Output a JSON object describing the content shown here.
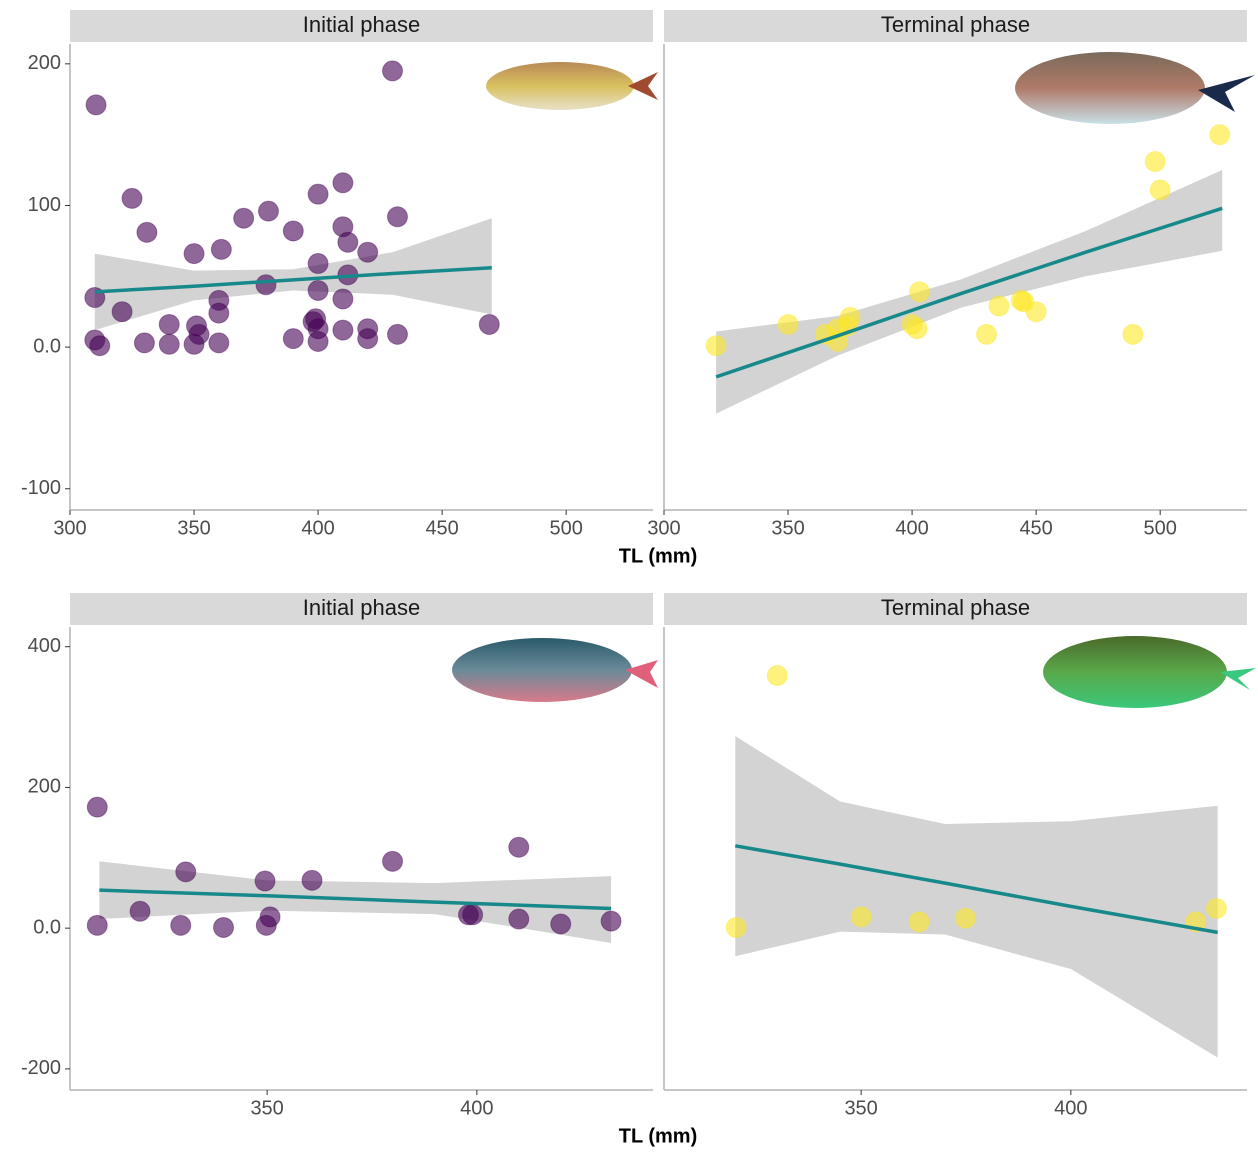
{
  "chart_data": [
    {
      "type": "scatter",
      "title": "Initial phase",
      "xlabel": "TL (mm)",
      "color": "#440154",
      "x": [
        310.5,
        310,
        310,
        312,
        321,
        325,
        330,
        331,
        340,
        340,
        350,
        350,
        351,
        352,
        360,
        360,
        360,
        361,
        370,
        379,
        380,
        390,
        390,
        398,
        399,
        400,
        400,
        400,
        400,
        400,
        410,
        410,
        410,
        410,
        412,
        412,
        420,
        420,
        420,
        430,
        432,
        432,
        469
      ],
      "y": [
        171,
        35,
        5,
        1,
        25,
        105,
        3,
        81,
        2,
        16,
        2,
        66,
        15,
        9,
        33,
        24,
        3,
        69,
        91,
        44,
        96,
        82,
        6,
        18,
        20,
        108,
        59,
        40,
        4,
        13,
        116,
        85,
        34,
        12,
        74,
        51,
        67,
        13,
        6,
        195,
        92,
        9,
        16
      ],
      "fit": {
        "color": "#17898a",
        "band_color": "#d3d3d3",
        "x": [
          310,
          350,
          390,
          430,
          470
        ],
        "y": [
          39,
          43,
          47.5,
          52,
          56
        ],
        "lower": [
          12,
          33,
          40,
          37,
          23
        ],
        "upper": [
          66,
          54,
          55,
          67,
          91
        ]
      },
      "xlim": [
        300,
        535
      ],
      "xticks": [
        300,
        350,
        400,
        450,
        500
      ],
      "ylim": [
        -115,
        214
      ],
      "yticks": [
        200,
        100,
        {
          "value": 0,
          "label": "0.0"
        },
        -100
      ]
    },
    {
      "type": "scatter",
      "title": "Terminal phase",
      "color": "#fde725",
      "x": [
        321,
        350,
        365,
        370,
        370,
        374,
        375,
        400,
        402,
        403,
        430,
        435,
        444,
        445,
        450,
        489,
        498,
        500,
        524
      ],
      "y": [
        1,
        16,
        9,
        13,
        4,
        15,
        21,
        16,
        13,
        39,
        9,
        29,
        33,
        32,
        25,
        9,
        131,
        111,
        150
      ],
      "fit": {
        "color": "#17898a",
        "band_color": "#d3d3d3",
        "x": [
          321,
          370,
          420,
          470,
          525
        ],
        "y": [
          -21,
          8,
          38,
          67,
          98
        ],
        "lower": [
          -47,
          -6,
          28,
          50,
          68
        ],
        "upper": [
          11,
          22,
          48,
          82,
          125
        ]
      },
      "xlim": [
        300,
        535
      ],
      "xticks": [
        300,
        350,
        400,
        450,
        500
      ],
      "ylim": [
        -115,
        214
      ]
    },
    {
      "type": "scatter",
      "title": "Initial phase",
      "xlabel": "TL (mm)",
      "color": "#440154",
      "x": [
        309.5,
        309.5,
        319.7,
        329.4,
        330.6,
        339.6,
        349.5,
        349.8,
        350.7,
        360.7,
        379.9,
        398,
        399,
        410,
        410,
        420,
        432
      ],
      "y": [
        172,
        4,
        24,
        4,
        80,
        1,
        67,
        4,
        16,
        68,
        95,
        19,
        19,
        115,
        13,
        6,
        10
      ],
      "fit": {
        "color": "#17898a",
        "band_color": "#d3d3d3",
        "x": [
          310,
          350,
          390,
          432
        ],
        "y": [
          54,
          46,
          37,
          28
        ],
        "lower": [
          13,
          25,
          20,
          -21
        ],
        "upper": [
          95,
          68,
          64,
          74
        ]
      },
      "xlim": [
        303,
        442
      ],
      "xticks": [
        350,
        400
      ],
      "ylim": [
        -230,
        428
      ],
      "yticks": [
        400,
        200,
        {
          "value": 0,
          "label": "0.0"
        },
        -200
      ]
    },
    {
      "type": "scatter",
      "title": "Terminal phase",
      "color": "#fde725",
      "x": [
        320.2,
        330,
        350,
        363.8,
        374.9,
        429.8,
        434.7
      ],
      "y": [
        1,
        359,
        16,
        9,
        14,
        9,
        28
      ],
      "fit": {
        "color": "#17898a",
        "band_color": "#d3d3d3",
        "x": [
          320,
          345,
          370,
          400,
          435
        ],
        "y": [
          117,
          91,
          64,
          31,
          -6
        ],
        "lower": [
          -40,
          -5,
          -9,
          -58,
          -184
        ],
        "upper": [
          273,
          180,
          148,
          152,
          174
        ]
      },
      "xlim": [
        303,
        442
      ],
      "xticks": [
        350,
        400
      ],
      "ylim": [
        -230,
        428
      ]
    }
  ]
}
